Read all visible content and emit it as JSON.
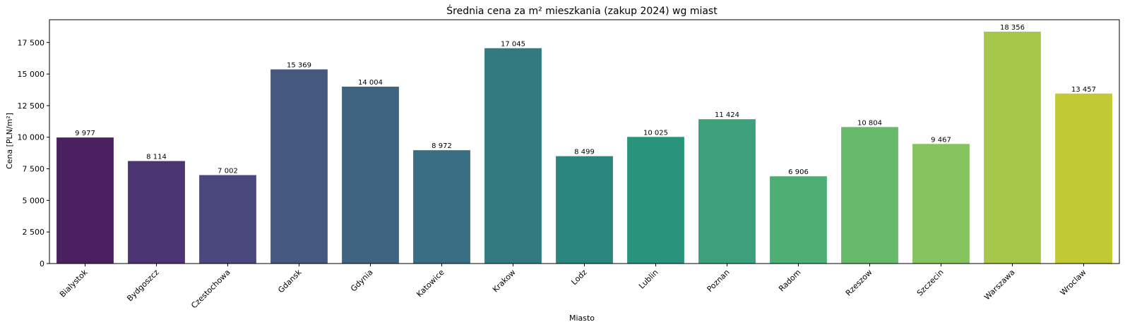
{
  "chart_data": {
    "type": "bar",
    "title": "Średnia cena za m² mieszkania (zakup 2024) wg miast",
    "xlabel": "Miasto",
    "ylabel": "Cena [PLN/m²]",
    "ylim": [
      0,
      19300
    ],
    "yticks": [
      0,
      2500,
      5000,
      7500,
      10000,
      12500,
      15000,
      17500
    ],
    "ytick_labels": [
      "0",
      "2 500",
      "5 000",
      "7 500",
      "10 000",
      "12 500",
      "15 000",
      "17 500"
    ],
    "grid": false,
    "categories": [
      "Bialystok",
      "Bydgoszcz",
      "Czestochowa",
      "Gdansk",
      "Gdynia",
      "Katowice",
      "Krakow",
      "Lodz",
      "Lublin",
      "Poznan",
      "Radom",
      "Rzeszow",
      "Szczecin",
      "Warszawa",
      "Wroclaw"
    ],
    "values": [
      9977,
      8114,
      7002,
      15369,
      14004,
      8972,
      17045,
      8499,
      10025,
      11424,
      6906,
      10804,
      9467,
      18356,
      13457
    ],
    "value_labels": [
      "9 977",
      "8 114",
      "7 002",
      "15 369",
      "14 004",
      "8 972",
      "17 045",
      "8 499",
      "10 025",
      "11 424",
      "6 906",
      "10 804",
      "9 467",
      "18 356",
      "13 457"
    ],
    "colors": [
      "#4a2060",
      "#4a3472",
      "#4a487c",
      "#455880",
      "#3f6482",
      "#396f82",
      "#327a80",
      "#2b8680",
      "#2a937c",
      "#3ca17a",
      "#4fae74",
      "#67ba69",
      "#86c25e",
      "#a7c74a",
      "#c1c934"
    ]
  }
}
